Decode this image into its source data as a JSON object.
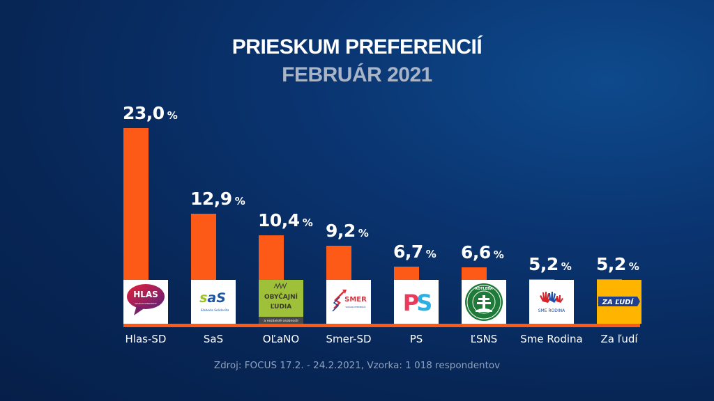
{
  "chart_data": {
    "type": "bar",
    "title": "PRIESKUM PREFERENCIÍ",
    "subtitle": "FEBRUÁR 2021",
    "xlabel": "",
    "ylabel": "",
    "ylim": [
      0,
      23
    ],
    "grid": false,
    "unit": "%",
    "categories": [
      "Hlas-SD",
      "SaS",
      "OĽaNO",
      "Smer-SD",
      "PS",
      "ĽSNS",
      "Sme Rodina",
      "Za ľudí"
    ],
    "values": [
      23.0,
      12.9,
      10.4,
      9.2,
      6.7,
      6.6,
      5.2,
      5.2
    ],
    "value_labels": [
      "23,0",
      "12,9",
      "10,4",
      "9,2",
      "6,7",
      "6,6",
      "5,2",
      "5,2"
    ],
    "bar_color": "#fe5a17",
    "source": "Zdroj: FOCUS 17.2. - 24.2.2021, Vzorka: 1 018 respondentov"
  },
  "logos": [
    {
      "party": "Hlas-SD",
      "icon": "hlas-logo-icon",
      "text": "HLAS",
      "small": "SOCIÁLNA DEMOKRACIA"
    },
    {
      "party": "SaS",
      "icon": "sas-logo-icon",
      "text": "SaS",
      "small": "Sloboda Solidarita"
    },
    {
      "party": "OĽaNO",
      "icon": "olano-logo-icon",
      "text1": "OBYČAJNÍ",
      "text2": "ĽUDIA",
      "small": "a nezávislé osobnosti"
    },
    {
      "party": "Smer-SD",
      "icon": "smer-logo-icon",
      "text": "SMER",
      "small": "SOCIÁLNA DEMOKRACIA"
    },
    {
      "party": "PS",
      "icon": "ps-logo-icon",
      "text": "PS"
    },
    {
      "party": "ĽSNS",
      "icon": "kotleba-logo-icon",
      "text": "KOTLEBA"
    },
    {
      "party": "Sme Rodina",
      "icon": "sme-rodina-logo-icon",
      "text": "SME RODINA"
    },
    {
      "party": "Za ľudí",
      "icon": "za-ludi-logo-icon",
      "text": "ZA ĽUDÍ"
    }
  ],
  "colors": {
    "background": "#072656",
    "accent": "#fe5a17",
    "subtitle": "#a9b4c6",
    "source": "#8fa2be"
  }
}
